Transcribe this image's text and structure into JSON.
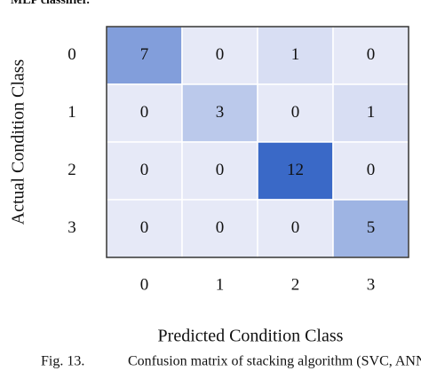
{
  "header_fragment": "MLP classifier.",
  "chart_data": {
    "type": "heatmap",
    "xlabel": "Predicted Condition Class",
    "ylabel": "Actual Condition Class",
    "x_categories": [
      "0",
      "1",
      "2",
      "3"
    ],
    "y_categories": [
      "0",
      "1",
      "2",
      "3"
    ],
    "values": [
      [
        7,
        0,
        1,
        0
      ],
      [
        0,
        3,
        0,
        1
      ],
      [
        0,
        0,
        12,
        0
      ],
      [
        0,
        0,
        0,
        5
      ]
    ],
    "clim": [
      0,
      12
    ],
    "colorscale": [
      "#e6e9f7",
      "#3a69c7"
    ]
  },
  "caption": {
    "label": "Fig. 13.",
    "text": "Confusion matrix of stacking algorithm (SVC, ANN)"
  }
}
